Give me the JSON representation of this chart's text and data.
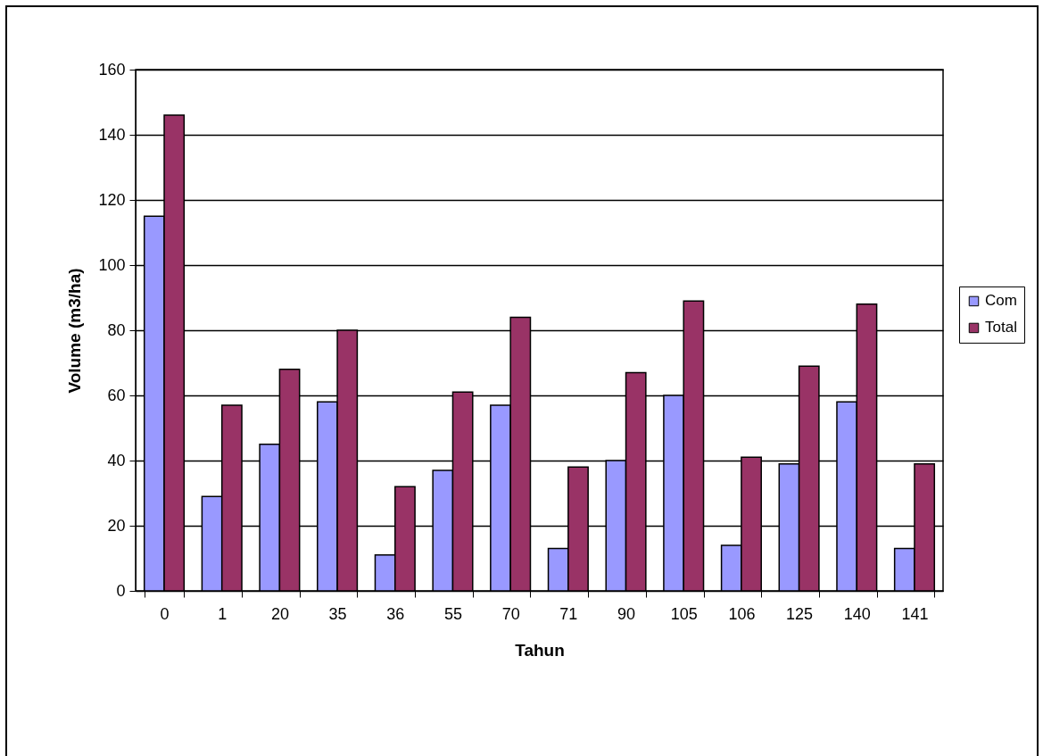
{
  "chart_data": {
    "type": "bar",
    "xlabel": "Tahun",
    "ylabel": "Volume (m3/ha)",
    "categories": [
      "0",
      "1",
      "20",
      "35",
      "36",
      "55",
      "70",
      "71",
      "90",
      "105",
      "106",
      "125",
      "140",
      "141"
    ],
    "series": [
      {
        "name": "Com",
        "color": "#9999ff",
        "values": [
          115,
          29,
          45,
          58,
          11,
          37,
          57,
          13,
          40,
          60,
          14,
          39,
          58,
          13
        ]
      },
      {
        "name": "Total",
        "color": "#993366",
        "values": [
          146,
          57,
          68,
          80,
          32,
          61,
          84,
          38,
          67,
          89,
          41,
          69,
          88,
          39
        ]
      }
    ],
    "ylim": [
      0,
      160
    ],
    "yticks": [
      0,
      20,
      40,
      60,
      80,
      100,
      120,
      140,
      160
    ],
    "grid": "y",
    "legend": "right"
  }
}
